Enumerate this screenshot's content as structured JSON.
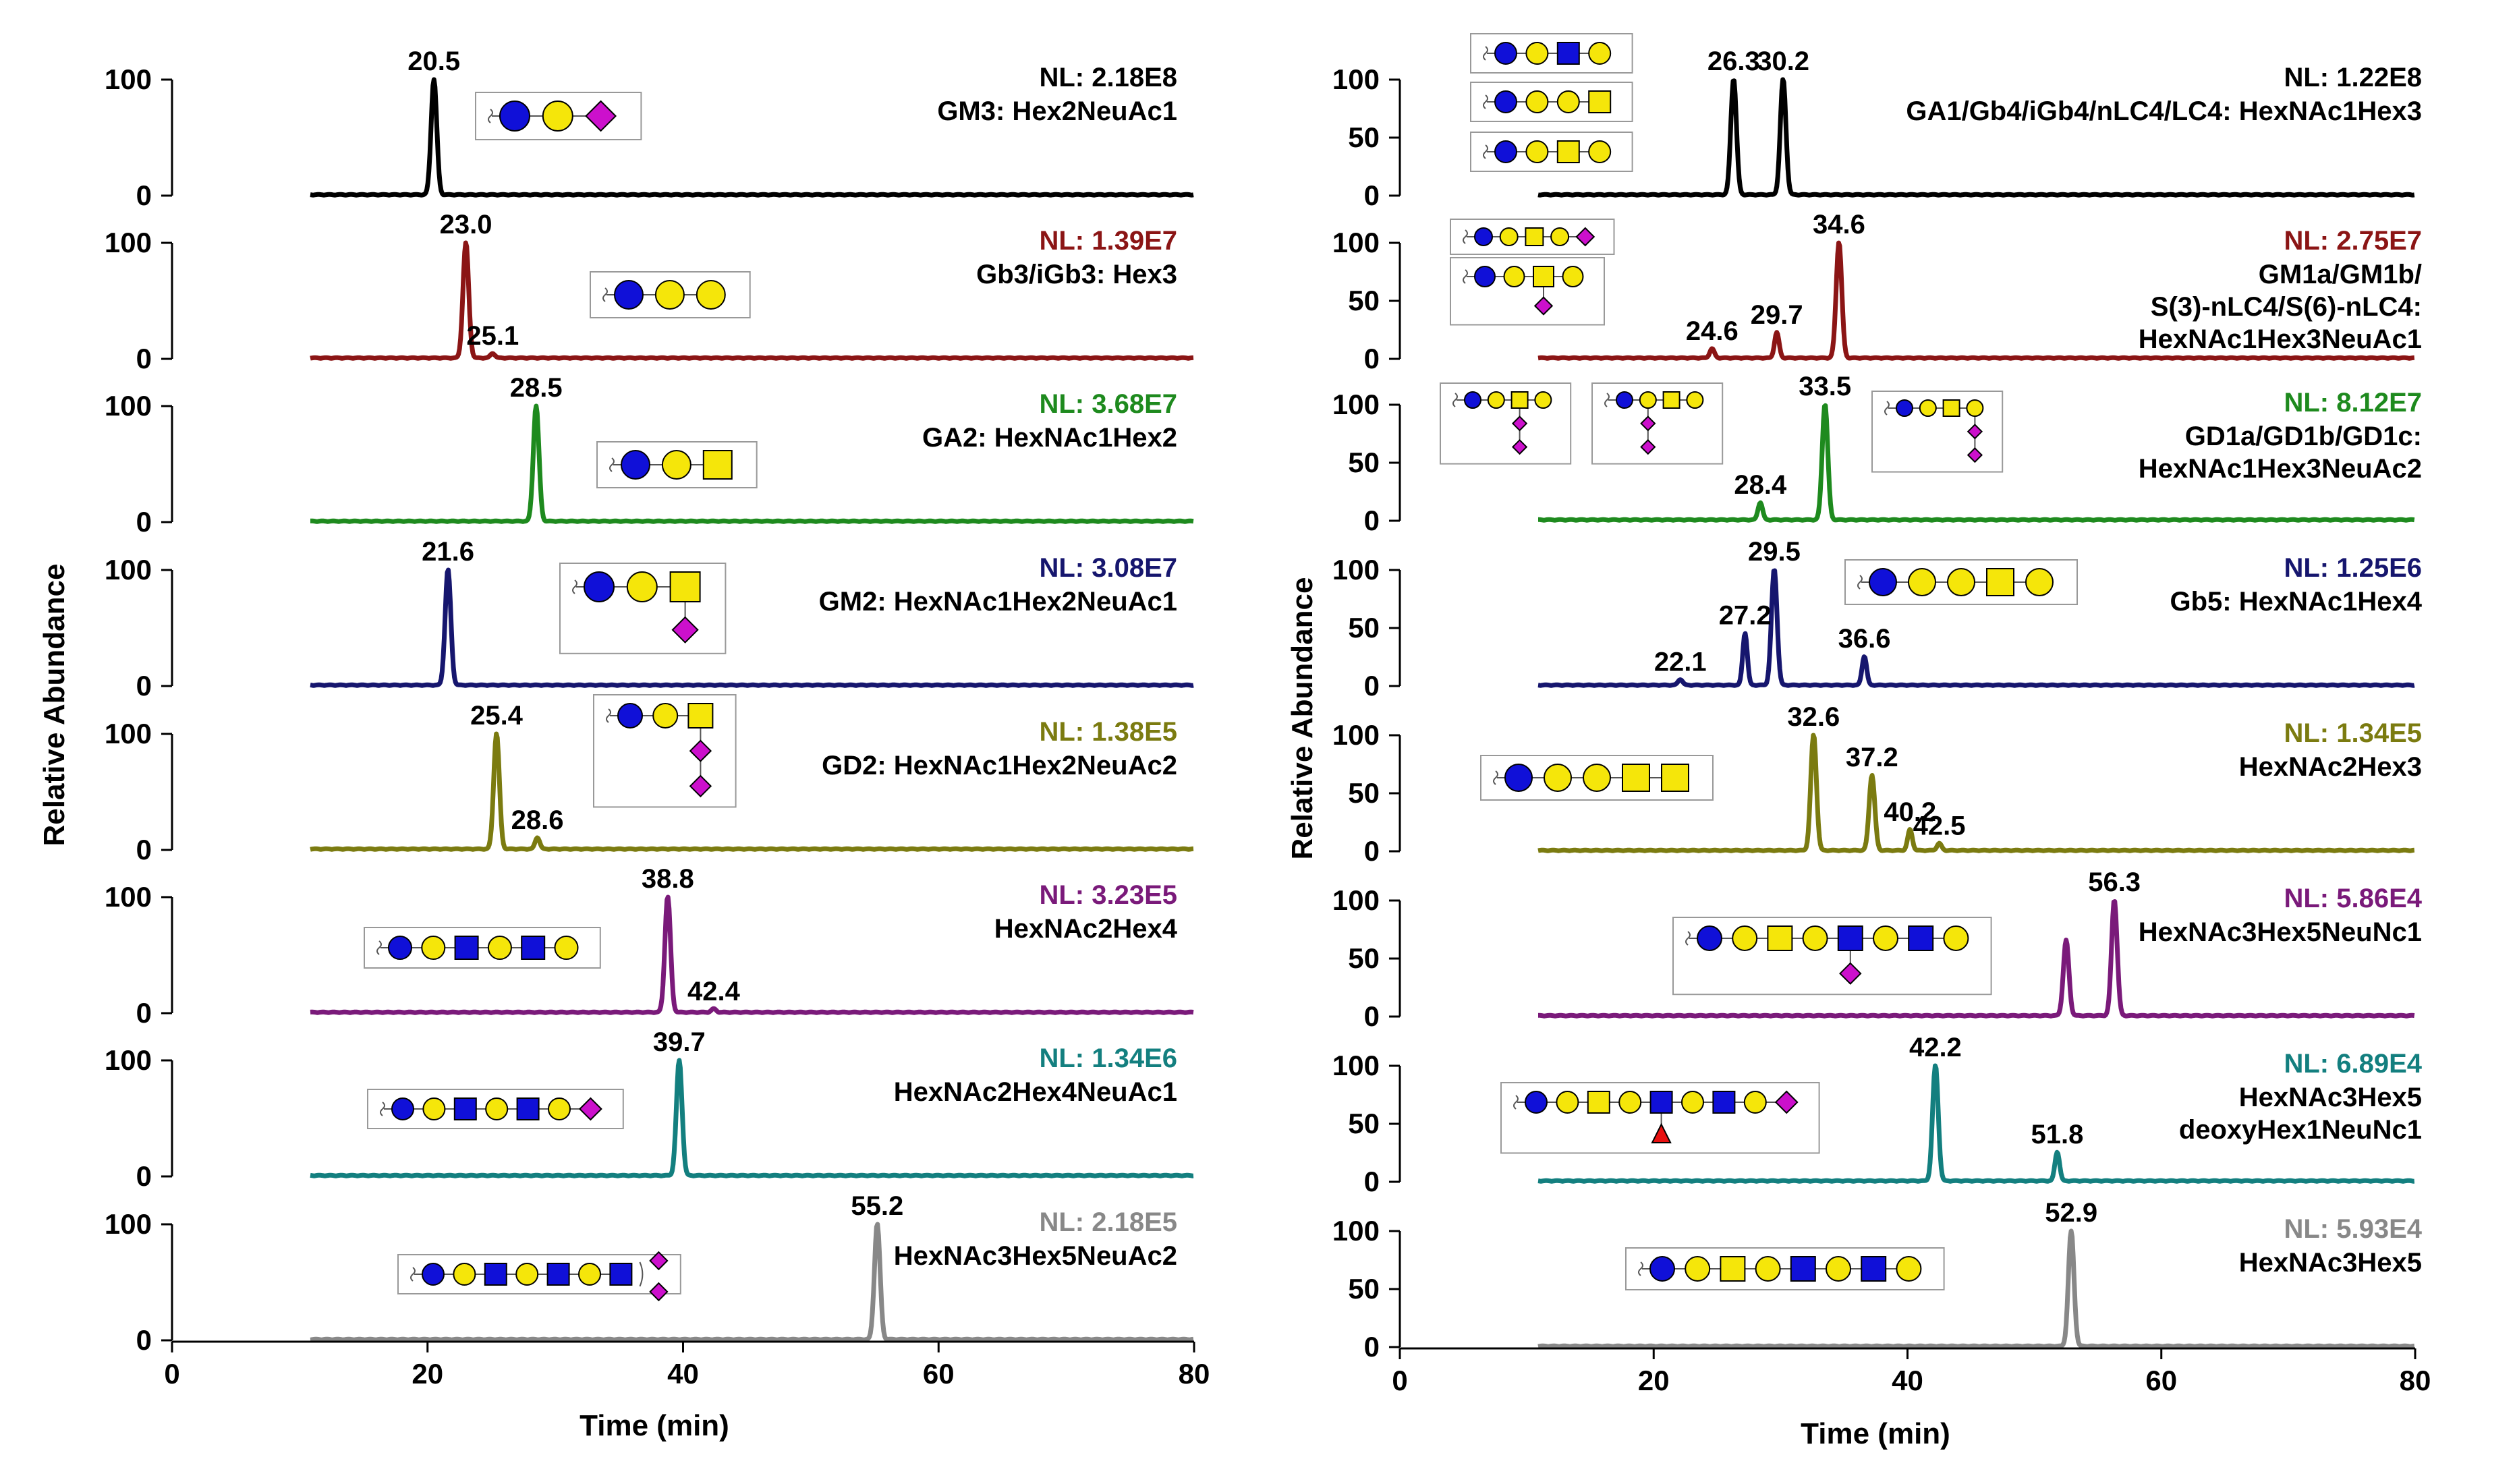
{
  "figure": {
    "y_axis_title": "Relative Abundance",
    "x_axis_title": "Time (min)",
    "x_ticks": [
      "0",
      "20",
      "40",
      "60",
      "80"
    ]
  },
  "colors": {
    "black": "#000000",
    "maroon": "#8b1515",
    "green": "#1e8a1e",
    "navy": "#16166e",
    "olive": "#7b7b10",
    "purple": "#7a1a7a",
    "teal": "#137f7f",
    "gray": "#888888",
    "glc": "#1010d8",
    "gal": "#f5e60a",
    "neu": "#cc10cc",
    "fuc": "#e81010"
  },
  "chart_data": [
    {
      "panel": "left",
      "type": "line",
      "xlabel": "Time (min)",
      "ylabel": "Relative Abundance",
      "xlim": [
        0,
        80
      ],
      "x_ticks": [
        0,
        20,
        40,
        60,
        80
      ],
      "traces": [
        {
          "color": "#000000",
          "yticks": [
            "100",
            "0"
          ],
          "ymax": 100,
          "nl": "NL: 2.18E8",
          "name": [
            "GM3: Hex2NeuAc1"
          ],
          "nl_colored": false,
          "peaks": [
            {
              "x": 20.5,
              "y": 100,
              "label": "20.5"
            }
          ],
          "glycan": [
            "glc",
            "gal",
            "neu"
          ]
        },
        {
          "color": "#8b1515",
          "yticks": [
            "100",
            "0"
          ],
          "ymax": 100,
          "nl": "NL: 1.39E7",
          "name": [
            "Gb3/iGb3: Hex3"
          ],
          "nl_colored": true,
          "peaks": [
            {
              "x": 23.0,
              "y": 100,
              "label": "23.0"
            },
            {
              "x": 25.1,
              "y": 4,
              "label": "25.1"
            }
          ],
          "glycan": [
            "glc",
            "gal",
            "gal"
          ]
        },
        {
          "color": "#1e8a1e",
          "yticks": [
            "100",
            "0"
          ],
          "ymax": 100,
          "nl": "NL: 3.68E7",
          "name": [
            "GA2: HexNAc1Hex2"
          ],
          "nl_colored": true,
          "peaks": [
            {
              "x": 28.5,
              "y": 100,
              "label": "28.5"
            }
          ],
          "glycan": [
            "glc",
            "gal",
            "galnac"
          ]
        },
        {
          "color": "#16166e",
          "yticks": [
            "100",
            "0"
          ],
          "ymax": 100,
          "nl": "NL: 3.08E7",
          "name": [
            "GM2: HexNAc1Hex2NeuAc1"
          ],
          "nl_colored": true,
          "peaks": [
            {
              "x": 21.6,
              "y": 100,
              "label": "21.6"
            }
          ],
          "glycan": [
            "glc",
            "gal",
            "galnac"
          ],
          "branch": [
            "neu"
          ]
        },
        {
          "color": "#7b7b10",
          "yticks": [
            "100",
            "0"
          ],
          "ymax": 100,
          "nl": "NL: 1.38E5",
          "name": [
            "GD2: HexNAc1Hex2NeuAc2"
          ],
          "nl_colored": true,
          "peaks": [
            {
              "x": 25.4,
              "y": 100,
              "label": "25.4"
            },
            {
              "x": 28.6,
              "y": 10,
              "label": "28.6"
            }
          ],
          "glycan": [
            "glc",
            "gal",
            "galnac"
          ],
          "branch": [
            "neu",
            "neu"
          ]
        },
        {
          "color": "#7a1a7a",
          "yticks": [
            "100",
            "0"
          ],
          "ymax": 100,
          "nl": "NL: 3.23E5",
          "name": [
            "HexNAc2Hex4"
          ],
          "nl_colored": true,
          "peaks": [
            {
              "x": 38.8,
              "y": 100,
              "label": "38.8"
            },
            {
              "x": 42.4,
              "y": 3,
              "label": "42.4"
            }
          ],
          "glycan": [
            "glc",
            "gal",
            "glcnac",
            "gal",
            "glcnac",
            "gal"
          ]
        },
        {
          "color": "#137f7f",
          "yticks": [
            "100",
            "0"
          ],
          "ymax": 100,
          "nl": "NL: 1.34E6",
          "name": [
            "HexNAc2Hex4NeuAc1"
          ],
          "nl_colored": true,
          "peaks": [
            {
              "x": 39.7,
              "y": 100,
              "label": "39.7"
            }
          ],
          "glycan": [
            "glc",
            "gal",
            "glcnac",
            "gal",
            "glcnac",
            "gal",
            "neu"
          ]
        },
        {
          "color": "#888888",
          "yticks": [
            "100",
            "0"
          ],
          "ymax": 100,
          "nl": "NL: 2.18E5",
          "name": [
            "HexNAc3Hex5NeuAc2"
          ],
          "nl_colored": true,
          "peaks": [
            {
              "x": 55.2,
              "y": 100,
              "label": "55.2"
            }
          ],
          "glycan": [
            "glc",
            "gal",
            "glcnac",
            "gal",
            "glcnac",
            "gal",
            "glcnac"
          ],
          "antenna": [
            "neu",
            "neu"
          ]
        }
      ]
    },
    {
      "panel": "right",
      "type": "line",
      "xlabel": "Time (min)",
      "ylabel": "Relative Abundance",
      "xlim": [
        0,
        80
      ],
      "x_ticks": [
        0,
        20,
        40,
        60,
        80
      ],
      "traces": [
        {
          "color": "#000000",
          "yticks": [
            "100",
            "50",
            "0"
          ],
          "ymax": 100,
          "nl": "NL: 1.22E8",
          "name": [
            "GA1/Gb4/iGb4/nLC4/LC4: HexNAc1Hex3"
          ],
          "nl_colored": false,
          "peaks": [
            {
              "x": 26.3,
              "y": 100,
              "label": "26.3"
            },
            {
              "x": 30.2,
              "y": 100,
              "label": "30.2"
            }
          ],
          "glycans": [
            [
              "glc",
              "gal",
              "glcnac",
              "gal"
            ],
            [
              "glc",
              "gal",
              "gal",
              "galnac"
            ],
            [
              "glc",
              "gal",
              "galnac",
              "gal"
            ]
          ]
        },
        {
          "color": "#8b1515",
          "yticks": [
            "100",
            "50",
            "0"
          ],
          "ymax": 100,
          "nl": "NL: 2.75E7",
          "name": [
            "GM1a/GM1b/",
            "S(3)-nLC4/S(6)-nLC4:",
            "HexNAc1Hex3NeuAc1"
          ],
          "nl_colored": true,
          "peaks": [
            {
              "x": 24.6,
              "y": 8,
              "label": "24.6"
            },
            {
              "x": 29.7,
              "y": 22,
              "label": "29.7"
            },
            {
              "x": 34.6,
              "y": 100,
              "label": "34.6"
            }
          ],
          "glycans": [
            [
              "glc",
              "gal",
              "galnac",
              "gal",
              "neu"
            ],
            [
              "glc",
              "gal",
              "galnac",
              "gal"
            ]
          ]
        },
        {
          "color": "#1e8a1e",
          "yticks": [
            "100",
            "50",
            "0"
          ],
          "ymax": 100,
          "nl": "NL: 8.12E7",
          "name": [
            "GD1a/GD1b/GD1c:",
            "HexNAc1Hex3NeuAc2"
          ],
          "nl_colored": true,
          "peaks": [
            {
              "x": 28.4,
              "y": 15,
              "label": "28.4"
            },
            {
              "x": 33.5,
              "y": 100,
              "label": "33.5"
            }
          ]
        },
        {
          "color": "#16166e",
          "yticks": [
            "100",
            "50",
            "0"
          ],
          "ymax": 100,
          "nl": "NL: 1.25E6",
          "name": [
            "Gb5: HexNAc1Hex4"
          ],
          "nl_colored": true,
          "peaks": [
            {
              "x": 22.1,
              "y": 5,
              "label": "22.1"
            },
            {
              "x": 27.2,
              "y": 45,
              "label": "27.2"
            },
            {
              "x": 29.5,
              "y": 100,
              "label": "29.5"
            },
            {
              "x": 36.6,
              "y": 25,
              "label": "36.6"
            }
          ],
          "glycan": [
            "glc",
            "gal",
            "gal",
            "galnac",
            "gal"
          ]
        },
        {
          "color": "#7b7b10",
          "yticks": [
            "100",
            "50",
            "0"
          ],
          "ymax": 100,
          "nl": "NL: 1.34E5",
          "name": [
            "HexNAc2Hex3"
          ],
          "nl_colored": true,
          "peaks": [
            {
              "x": 32.6,
              "y": 100,
              "label": "32.6"
            },
            {
              "x": 37.2,
              "y": 65,
              "label": "37.2"
            },
            {
              "x": 40.2,
              "y": 18,
              "label": "40.2"
            },
            {
              "x": 42.5,
              "y": 6,
              "label": "42.5"
            }
          ],
          "glycan": [
            "glc",
            "gal",
            "gal",
            "galnac",
            "galnac"
          ]
        },
        {
          "color": "#7a1a7a",
          "yticks": [
            "100",
            "50",
            "0"
          ],
          "ymax": 100,
          "nl": "NL: 5.86E4",
          "name": [
            "HexNAc3Hex5NeuNc1"
          ],
          "nl_colored": true,
          "peaks": [
            {
              "x": 52.5,
              "y": 65,
              "label": ""
            },
            {
              "x": 56.3,
              "y": 100,
              "label": "56.3"
            }
          ],
          "glycan": [
            "glc",
            "gal",
            "galnac",
            "gal",
            "glcnac",
            "gal",
            "glcnac",
            "gal"
          ]
        },
        {
          "color": "#137f7f",
          "yticks": [
            "100",
            "50",
            "0"
          ],
          "ymax": 100,
          "nl": "NL: 6.89E4",
          "name": [
            "HexNAc3Hex5",
            "deoxyHex1NeuNc1"
          ],
          "nl_colored": true,
          "peaks": [
            {
              "x": 42.2,
              "y": 100,
              "label": "42.2"
            },
            {
              "x": 51.8,
              "y": 25,
              "label": "51.8"
            }
          ],
          "glycan": [
            "glc",
            "gal",
            "galnac",
            "gal",
            "glcnac",
            "gal",
            "glcnac",
            "gal",
            "neu"
          ]
        },
        {
          "color": "#888888",
          "yticks": [
            "100",
            "50",
            "0"
          ],
          "ymax": 100,
          "nl": "NL: 5.93E4",
          "name": [
            "HexNAc3Hex5"
          ],
          "nl_colored": true,
          "peaks": [
            {
              "x": 52.9,
              "y": 100,
              "label": "52.9"
            }
          ],
          "glycan": [
            "glc",
            "gal",
            "galnac",
            "gal",
            "glcnac",
            "gal",
            "glcnac",
            "gal"
          ]
        }
      ]
    }
  ]
}
